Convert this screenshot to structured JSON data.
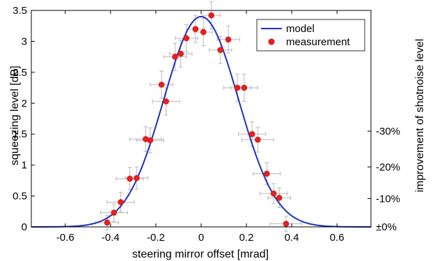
{
  "chart_data": {
    "type": "scatter",
    "xlabel": "steering mirror offset [mrad]",
    "ylabel": "squeezing level [dB]",
    "y2label": "improvement of shotnoise level",
    "xlim": [
      -0.75,
      0.75
    ],
    "ylim": [
      0,
      3.5
    ],
    "x_ticks": [
      -0.6,
      -0.4,
      -0.2,
      0,
      0.2,
      0.4,
      0.6
    ],
    "x_tick_labels": [
      "-0.6",
      "-0.4",
      "-0.2",
      "0",
      "0.2",
      "0.4",
      "0.6"
    ],
    "y_ticks": [
      0,
      0.5,
      1,
      1.5,
      2,
      2.5,
      3,
      3.5
    ],
    "y_tick_labels": [
      "0",
      "0.5",
      "1",
      "1.5",
      "2",
      "2.5",
      "3",
      "3.5"
    ],
    "y2_ticks_db": [
      0,
      0.458,
      0.969,
      1.549
    ],
    "y2_tick_labels": [
      "±0%",
      "-10%",
      "-20%",
      "-30%"
    ],
    "legend_position": "top-right",
    "grid": false,
    "model": {
      "name": "model",
      "color": "#1f2fbf",
      "peak": 3.4,
      "center": 0.0,
      "sigma": 0.165
    },
    "measurement": {
      "name": "measurement",
      "color": "#e8201f",
      "points": [
        {
          "x": -0.415,
          "y": 0.07,
          "xerr": 0.05,
          "yerr": 0.12
        },
        {
          "x": -0.385,
          "y": 0.23,
          "xerr": 0.06,
          "yerr": 0.14
        },
        {
          "x": -0.355,
          "y": 0.4,
          "xerr": 0.06,
          "yerr": 0.16
        },
        {
          "x": -0.315,
          "y": 0.78,
          "xerr": 0.06,
          "yerr": 0.18
        },
        {
          "x": -0.285,
          "y": 0.79,
          "xerr": 0.05,
          "yerr": 0.18
        },
        {
          "x": -0.245,
          "y": 1.42,
          "xerr": 0.07,
          "yerr": 0.2
        },
        {
          "x": -0.225,
          "y": 1.4,
          "xerr": 0.06,
          "yerr": 0.2
        },
        {
          "x": -0.175,
          "y": 2.3,
          "xerr": 0.05,
          "yerr": 0.22
        },
        {
          "x": -0.155,
          "y": 2.03,
          "xerr": 0.06,
          "yerr": 0.22
        },
        {
          "x": -0.115,
          "y": 2.75,
          "xerr": 0.05,
          "yerr": 0.22
        },
        {
          "x": -0.09,
          "y": 2.8,
          "xerr": 0.05,
          "yerr": 0.22
        },
        {
          "x": -0.065,
          "y": 3.05,
          "xerr": 0.05,
          "yerr": 0.22
        },
        {
          "x": -0.025,
          "y": 3.2,
          "xerr": 0.04,
          "yerr": 0.22
        },
        {
          "x": 0.01,
          "y": 3.15,
          "xerr": 0.04,
          "yerr": 0.22
        },
        {
          "x": 0.045,
          "y": 3.42,
          "xerr": 0.04,
          "yerr": 0.22
        },
        {
          "x": 0.085,
          "y": 2.86,
          "xerr": 0.05,
          "yerr": 0.22
        },
        {
          "x": 0.12,
          "y": 3.03,
          "xerr": 0.05,
          "yerr": 0.22
        },
        {
          "x": 0.16,
          "y": 2.25,
          "xerr": 0.06,
          "yerr": 0.22
        },
        {
          "x": 0.19,
          "y": 2.25,
          "xerr": 0.06,
          "yerr": 0.22
        },
        {
          "x": 0.225,
          "y": 1.5,
          "xerr": 0.06,
          "yerr": 0.2
        },
        {
          "x": 0.25,
          "y": 1.41,
          "xerr": 0.07,
          "yerr": 0.2
        },
        {
          "x": 0.29,
          "y": 0.86,
          "xerr": 0.06,
          "yerr": 0.18
        },
        {
          "x": 0.32,
          "y": 0.54,
          "xerr": 0.06,
          "yerr": 0.16
        },
        {
          "x": 0.345,
          "y": 0.47,
          "xerr": 0.05,
          "yerr": 0.16
        },
        {
          "x": 0.375,
          "y": 0.05,
          "xerr": 0.07,
          "yerr": 0.12
        }
      ]
    }
  }
}
